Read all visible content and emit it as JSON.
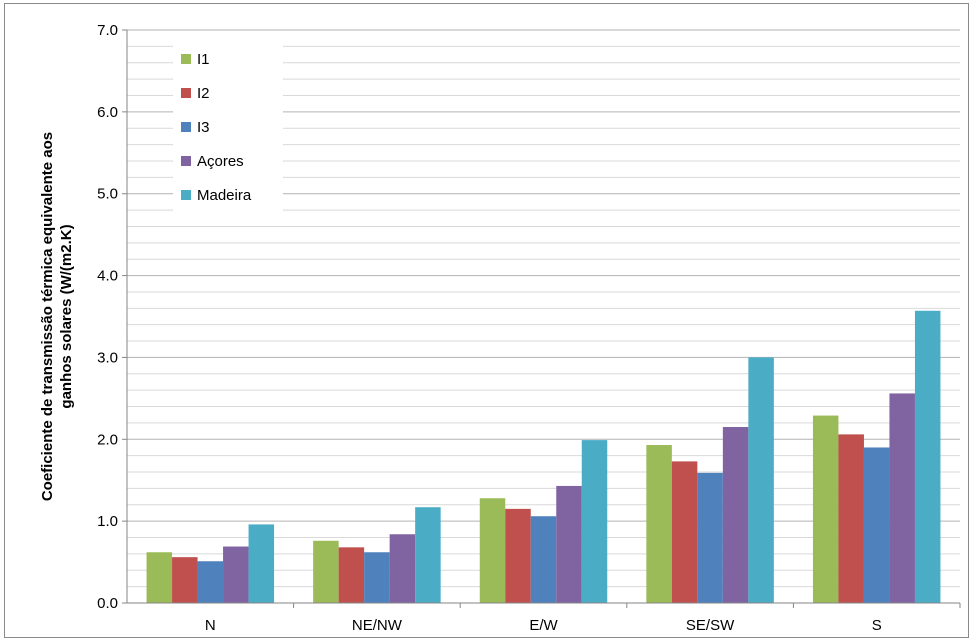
{
  "chart_data": {
    "type": "bar",
    "title": "",
    "xlabel": "",
    "ylabel": "Coeficiente de transmissão térmica equivalente aos ganhos solares (W/(m2.K)",
    "ylabel_lines": [
      "Coeficiente de transmissão térmica equivalente aos",
      "ganhos solares (W/(m2.K)"
    ],
    "ylim": [
      0,
      7
    ],
    "y_major_step": 1,
    "y_minor_step": 0.2,
    "y_tick_labels": [
      "0.0",
      "1.0",
      "2.0",
      "3.0",
      "4.0",
      "5.0",
      "6.0",
      "7.0"
    ],
    "grid": true,
    "legend_position": "top-left",
    "categories": [
      "N",
      "NE/NW",
      "E/W",
      "SE/SW",
      "S"
    ],
    "series": [
      {
        "name": "I1",
        "color": "#9bbb59",
        "values": [
          0.62,
          0.76,
          1.28,
          1.93,
          2.29
        ]
      },
      {
        "name": "I2",
        "color": "#c0504d",
        "values": [
          0.56,
          0.68,
          1.15,
          1.73,
          2.06
        ]
      },
      {
        "name": "I3",
        "color": "#4f81bd",
        "values": [
          0.51,
          0.62,
          1.06,
          1.59,
          1.9
        ]
      },
      {
        "name": "Açores",
        "color": "#8064a2",
        "values": [
          0.69,
          0.84,
          1.43,
          2.15,
          2.56
        ]
      },
      {
        "name": "Madeira",
        "color": "#4bacc6",
        "values": [
          0.96,
          1.17,
          1.99,
          3.0,
          3.57
        ]
      }
    ]
  }
}
